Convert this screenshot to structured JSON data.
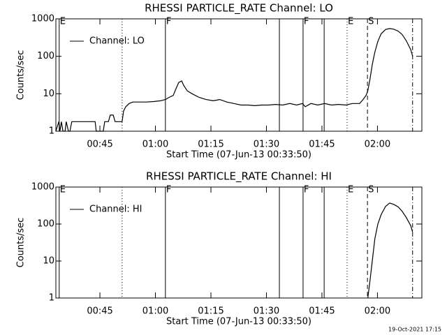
{
  "chart_data": [
    {
      "type": "line",
      "title": "RHESSI PARTICLE_RATE Channel: LO",
      "xlabel": "Start Time (07-Jun-13 00:33:50)",
      "ylabel": "Counts/sec",
      "log_y": true,
      "legend": "upper left",
      "xlim": [
        33.1,
        132.0
      ],
      "ylim": [
        1,
        1000
      ],
      "yticks": [
        1,
        10,
        100,
        1000
      ],
      "xticks": [
        {
          "value": 45,
          "label": "00:45"
        },
        {
          "value": 60,
          "label": "01:00"
        },
        {
          "value": 75,
          "label": "01:15"
        },
        {
          "value": 90,
          "label": "01:30"
        },
        {
          "value": 105,
          "label": "01:45"
        },
        {
          "value": 120,
          "label": "02:00"
        }
      ],
      "annotations": [
        {
          "x": 34.0,
          "label": "E",
          "style": "solid"
        },
        {
          "x": 51.0,
          "style": "dotted"
        },
        {
          "x": 62.7,
          "label": "F",
          "style": "solid"
        },
        {
          "x": 93.5,
          "style": "solid"
        },
        {
          "x": 99.9,
          "label": "F",
          "style": "solid"
        },
        {
          "x": 105.6,
          "style": "solid"
        },
        {
          "x": 111.8,
          "label": "E",
          "style": "dotted"
        },
        {
          "x": 117.3,
          "label": "S",
          "style": "dashed"
        },
        {
          "x": 129.5,
          "style": "dashdot"
        }
      ],
      "series": [
        {
          "name": "Channel: LO",
          "color": "#000000",
          "x": [
            33.1,
            33.9,
            34.2,
            34.6,
            35.0,
            35.6,
            35.9,
            36.5,
            36.9,
            37.4,
            38.8,
            40.6,
            42.5,
            43.7,
            44.0,
            45.9,
            46.3,
            47.3,
            47.8,
            48.6,
            49.1,
            51.0,
            51.4,
            52.0,
            52.9,
            53.9,
            55.7,
            57.6,
            59.5,
            61.4,
            62.7,
            63.7,
            64.8,
            65.6,
            66.3,
            67.1,
            67.6,
            68.6,
            69.9,
            71.8,
            73.7,
            75.6,
            77.4,
            79.3,
            81.2,
            83.1,
            85.0,
            86.9,
            88.8,
            90.6,
            92.5,
            94.4,
            96.3,
            98.2,
            99.7,
            100.5,
            102.0,
            103.9,
            105.7,
            107.6,
            109.5,
            111.4,
            113.3,
            115.2,
            116.1,
            116.9,
            117.4,
            118.0,
            118.6,
            119.3,
            120.1,
            121.0,
            122.2,
            123.3,
            124.4,
            125.6,
            126.7,
            127.8,
            129.0,
            129.5
          ],
          "values": [
            1,
            1.8,
            1,
            1.8,
            1,
            1,
            1.8,
            1,
            1,
            1.8,
            1.8,
            1.8,
            1.8,
            1.8,
            1,
            1,
            1.8,
            1.8,
            2.7,
            2.7,
            1.8,
            1.8,
            3.5,
            4.5,
            5.5,
            6,
            6,
            6,
            6.2,
            6.5,
            7,
            8,
            9,
            14,
            20,
            22,
            17,
            12,
            10,
            8,
            7,
            6.5,
            7,
            6,
            5.5,
            5,
            5,
            4.8,
            5,
            5,
            5.2,
            5,
            5.5,
            5,
            5.5,
            4.5,
            5.5,
            5,
            5.5,
            5,
            5.2,
            5,
            5.5,
            5.5,
            7,
            9,
            12,
            25,
            60,
            130,
            250,
            400,
            520,
            550,
            530,
            470,
            380,
            260,
            150,
            100
          ]
        }
      ]
    },
    {
      "type": "line",
      "title": "RHESSI PARTICLE_RATE Channel: HI",
      "xlabel": "Start Time (07-Jun-13 00:33:50)",
      "ylabel": "Counts/sec",
      "log_y": true,
      "legend": "upper left",
      "xlim": [
        33.1,
        132.0
      ],
      "ylim": [
        1,
        1000
      ],
      "yticks": [
        1,
        10,
        100,
        1000
      ],
      "xticks": [
        {
          "value": 45,
          "label": "00:45"
        },
        {
          "value": 60,
          "label": "01:00"
        },
        {
          "value": 75,
          "label": "01:15"
        },
        {
          "value": 90,
          "label": "01:30"
        },
        {
          "value": 105,
          "label": "01:45"
        },
        {
          "value": 120,
          "label": "02:00"
        }
      ],
      "annotations": [
        {
          "x": 34.0,
          "label": "E",
          "style": "solid"
        },
        {
          "x": 51.0,
          "style": "dotted"
        },
        {
          "x": 62.7,
          "label": "F",
          "style": "solid"
        },
        {
          "x": 93.5,
          "style": "solid"
        },
        {
          "x": 99.9,
          "label": "F",
          "style": "solid"
        },
        {
          "x": 105.6,
          "style": "solid"
        },
        {
          "x": 111.8,
          "label": "E",
          "style": "dotted"
        },
        {
          "x": 117.3,
          "label": "S",
          "style": "dashed"
        },
        {
          "x": 129.5,
          "style": "dashdot"
        }
      ],
      "series": [
        {
          "name": "Channel: HI",
          "color": "#000000",
          "x": [
            117.4,
            118.0,
            118.6,
            119.3,
            120.1,
            121.0,
            122.2,
            123.3,
            124.4,
            125.6,
            126.7,
            127.8,
            129.0,
            129.5
          ],
          "values": [
            1,
            3,
            10,
            40,
            100,
            180,
            300,
            370,
            340,
            290,
            220,
            150,
            90,
            60
          ]
        }
      ]
    }
  ],
  "footer": "19-Oct-2021 17:15"
}
